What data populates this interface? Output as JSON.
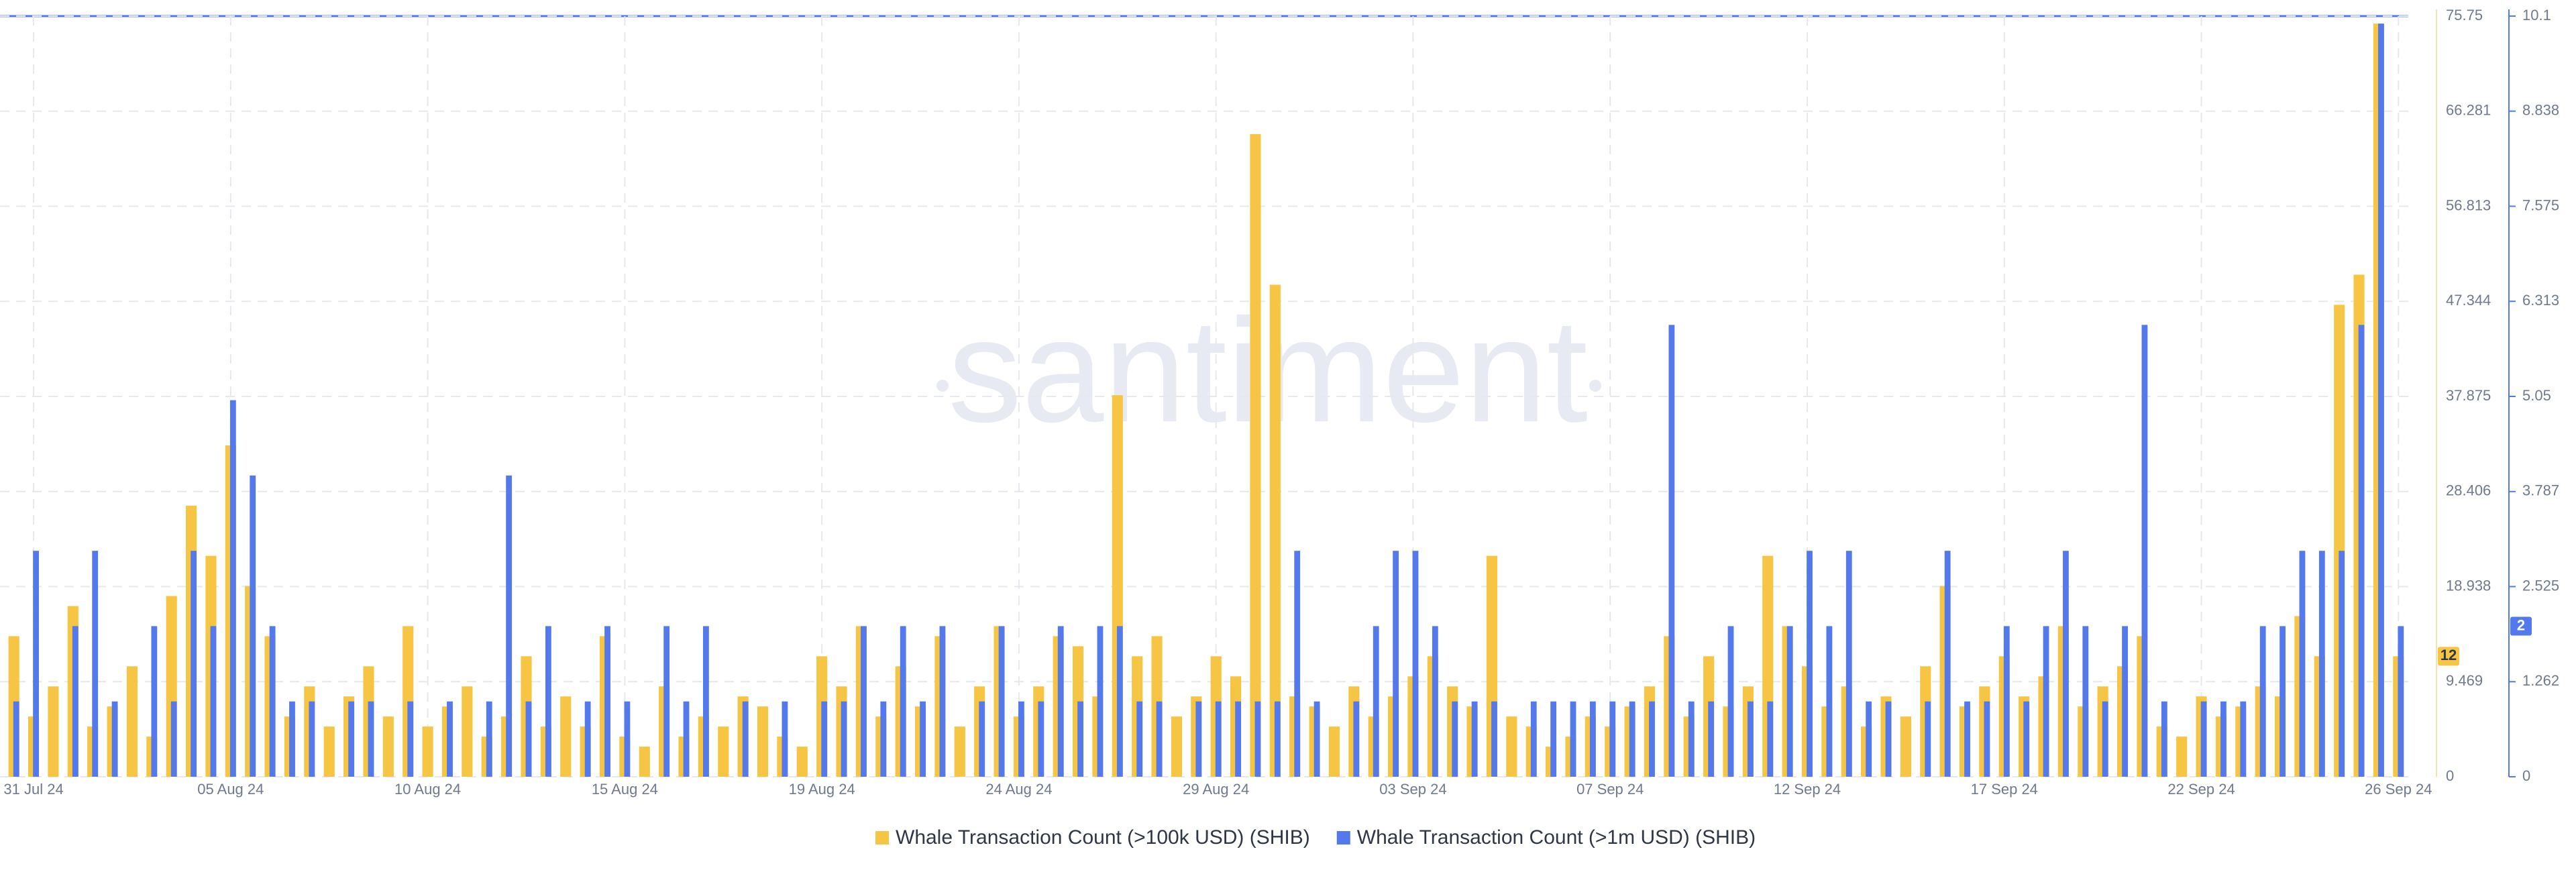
{
  "chart_data": {
    "type": "bar",
    "watermark": "santiment",
    "categories": [
      null,
      "31 Jul 24",
      null,
      null,
      null,
      null,
      null,
      null,
      null,
      null,
      null,
      "05 Aug 24",
      null,
      null,
      null,
      null,
      null,
      null,
      null,
      null,
      null,
      "10 Aug 24",
      null,
      null,
      null,
      null,
      null,
      null,
      null,
      null,
      null,
      "15 Aug 24",
      null,
      null,
      null,
      null,
      null,
      null,
      null,
      null,
      null,
      "19 Aug 24",
      null,
      null,
      null,
      null,
      null,
      null,
      null,
      null,
      null,
      "24 Aug 24",
      null,
      null,
      null,
      null,
      null,
      null,
      null,
      null,
      null,
      "29 Aug 24",
      null,
      null,
      null,
      null,
      null,
      null,
      null,
      null,
      null,
      "03 Sep 24",
      null,
      null,
      null,
      null,
      null,
      null,
      null,
      null,
      null,
      "07 Sep 24",
      null,
      null,
      null,
      null,
      null,
      null,
      null,
      null,
      null,
      "12 Sep 24",
      null,
      null,
      null,
      null,
      null,
      null,
      null,
      null,
      null,
      "17 Sep 24",
      null,
      null,
      null,
      null,
      null,
      null,
      null,
      null,
      null,
      "22 Sep 24",
      null,
      null,
      null,
      null,
      null,
      null,
      null,
      null,
      null,
      "26 Sep 24"
    ],
    "series": [
      {
        "name": "Whale Transaction Count (>100k USD) (SHIB)",
        "color": "#f7c544",
        "axis": "y",
        "values": [
          14,
          6,
          9,
          17,
          5,
          7,
          11,
          4,
          18,
          27,
          22,
          33,
          19,
          14,
          6,
          9,
          5,
          8,
          11,
          6,
          15,
          5,
          7,
          9,
          4,
          6,
          12,
          5,
          8,
          5,
          14,
          4,
          3,
          9,
          4,
          6,
          5,
          8,
          7,
          4,
          3,
          12,
          9,
          15,
          6,
          11,
          7,
          14,
          5,
          9,
          15,
          6,
          9,
          14,
          13,
          8,
          38,
          12,
          14,
          6,
          8,
          12,
          10,
          64,
          49,
          8,
          7,
          5,
          9,
          6,
          8,
          10,
          12,
          9,
          7,
          22,
          6,
          5,
          3,
          4,
          6,
          5,
          7,
          9,
          14,
          6,
          12,
          7,
          9,
          22,
          15,
          11,
          7,
          9,
          5,
          8,
          6,
          11,
          19,
          7,
          9,
          12,
          8,
          10,
          15,
          7,
          9,
          11,
          14,
          5,
          4,
          8,
          6,
          7,
          9,
          8,
          16,
          12,
          47,
          50,
          75,
          12
        ]
      },
      {
        "name": "Whale Transaction Count (>1m USD) (SHIB)",
        "color": "#5479ec",
        "axis": "y2",
        "values": [
          1,
          3,
          0,
          2,
          3,
          1,
          0,
          2,
          1,
          3,
          2,
          5,
          4,
          2,
          1,
          1,
          0,
          1,
          1,
          0,
          1,
          0,
          1,
          0,
          1,
          4,
          1,
          2,
          0,
          1,
          2,
          1,
          0,
          2,
          1,
          2,
          0,
          1,
          0,
          1,
          0,
          1,
          1,
          2,
          1,
          2,
          1,
          2,
          0,
          1,
          2,
          1,
          1,
          2,
          1,
          2,
          2,
          1,
          1,
          0,
          1,
          1,
          1,
          1,
          1,
          3,
          1,
          0,
          1,
          2,
          3,
          3,
          2,
          1,
          1,
          1,
          0,
          1,
          1,
          1,
          1,
          1,
          1,
          1,
          6,
          1,
          1,
          2,
          1,
          1,
          2,
          3,
          2,
          3,
          1,
          1,
          0,
          1,
          3,
          1,
          1,
          2,
          1,
          2,
          3,
          2,
          1,
          2,
          6,
          1,
          0,
          1,
          1,
          1,
          2,
          2,
          3,
          3,
          3,
          6,
          10,
          2
        ]
      }
    ],
    "ylim": [
      0,
      75.75
    ],
    "yticks": [
      0,
      9.469,
      18.938,
      28.406,
      37.875,
      47.344,
      56.813,
      66.281,
      75.75
    ],
    "y2lim": [
      0,
      10.1
    ],
    "y2ticks": [
      0,
      1.262,
      2.525,
      3.787,
      5.05,
      6.313,
      7.575,
      8.838,
      10.1
    ],
    "grid": true,
    "legend": "bottom"
  }
}
